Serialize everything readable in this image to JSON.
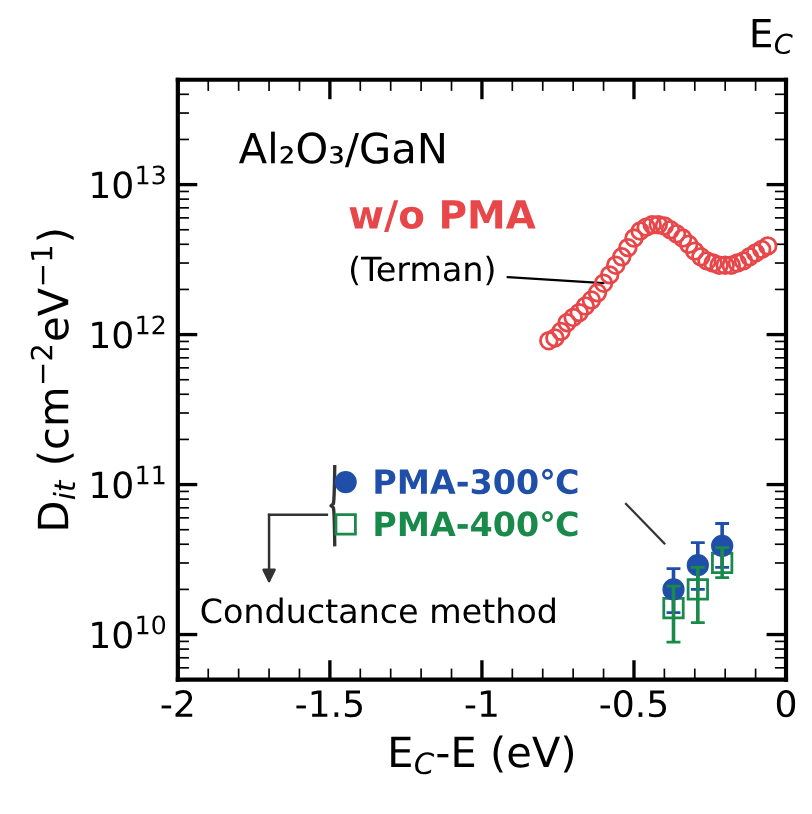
{
  "chart_data": {
    "type": "scatter",
    "xlabel": "E$_{C}$-E (eV)",
    "ylabel": "D$_{it}$ (cm$^{−2}$eV$^{−1}$)",
    "log": "y",
    "xlim": [
      -2,
      0
    ],
    "xticks": [
      -2,
      -1.5,
      -1,
      -0.5,
      0
    ],
    "ylim": [
      5000000000.0,
      50000000000000.0
    ],
    "yticks": [
      {
        "value": 10000000000.0,
        "label": "10$^{10}$"
      },
      {
        "value": 100000000000.0,
        "label": "10$^{11}$"
      },
      {
        "value": 1000000000000.0,
        "label": "10$^{12}$"
      },
      {
        "value": 10000000000000.0,
        "label": "10$^{13}$"
      }
    ],
    "grid": false,
    "legend": "bottom",
    "series": [
      {
        "name": "w/o PMA",
        "color": "#e8474a",
        "marker": "circle",
        "x": [
          -0.78,
          -0.76,
          -0.74,
          -0.72,
          -0.7,
          -0.68,
          -0.66,
          -0.64,
          -0.62,
          -0.6,
          -0.58,
          -0.56,
          -0.54,
          -0.52,
          -0.5,
          -0.48,
          -0.46,
          -0.44,
          -0.42,
          -0.4,
          -0.38,
          -0.36,
          -0.34,
          -0.32,
          -0.3,
          -0.28,
          -0.26,
          -0.24,
          -0.22,
          -0.2,
          -0.18,
          -0.16,
          -0.14,
          -0.12,
          -0.1,
          -0.08,
          -0.06
        ],
        "values": [
          910000000000.0,
          950000000000.0,
          1050000000000.0,
          1200000000000.0,
          1300000000000.0,
          1400000000000.0,
          1550000000000.0,
          1700000000000.0,
          1900000000000.0,
          2200000000000.0,
          2500000000000.0,
          2900000000000.0,
          3300000000000.0,
          3800000000000.0,
          4400000000000.0,
          4900000000000.0,
          5200000000000.0,
          5400000000000.0,
          5400000000000.0,
          5300000000000.0,
          5000000000000.0,
          4700000000000.0,
          4400000000000.0,
          4000000000000.0,
          3600000000000.0,
          3300000000000.0,
          3100000000000.0,
          3000000000000.0,
          2900000000000.0,
          2900000000000.0,
          2900000000000.0,
          3000000000000.0,
          3100000000000.0,
          3300000000000.0,
          3500000000000.0,
          3700000000000.0,
          3900000000000.0
        ]
      },
      {
        "name": "PMA-300℃",
        "color": "#1f4fa8",
        "marker": "circle",
        "x": [
          -0.37,
          -0.29,
          -0.21
        ],
        "values": [
          20000000000.0,
          29000000000.0,
          39000000000.0
        ],
        "errors": [
          [
            14000000000.0,
            27500000000.0
          ],
          [
            20000000000.0,
            41000000000.0
          ],
          [
            28000000000.0,
            55000000000.0
          ]
        ]
      },
      {
        "name": "PMA-400℃",
        "color": "#1a8a4a",
        "marker": "square",
        "x": [
          -0.37,
          -0.29,
          -0.21
        ],
        "values": [
          15000000000.0,
          20000000000.0,
          30000000000.0
        ],
        "errors": [
          [
            8900000000.0,
            21000000000.0
          ],
          [
            12000000000.0,
            28000000000.0
          ],
          [
            24000000000.0,
            38000000000.0
          ]
        ]
      }
    ],
    "annotations": [
      "Al₂O₃/GaN",
      {
        "text": "(Terman)",
        "x": -0.6,
        "y": 2200000000000.0
      },
      "Conductance method",
      "E$_{C}$"
    ]
  }
}
